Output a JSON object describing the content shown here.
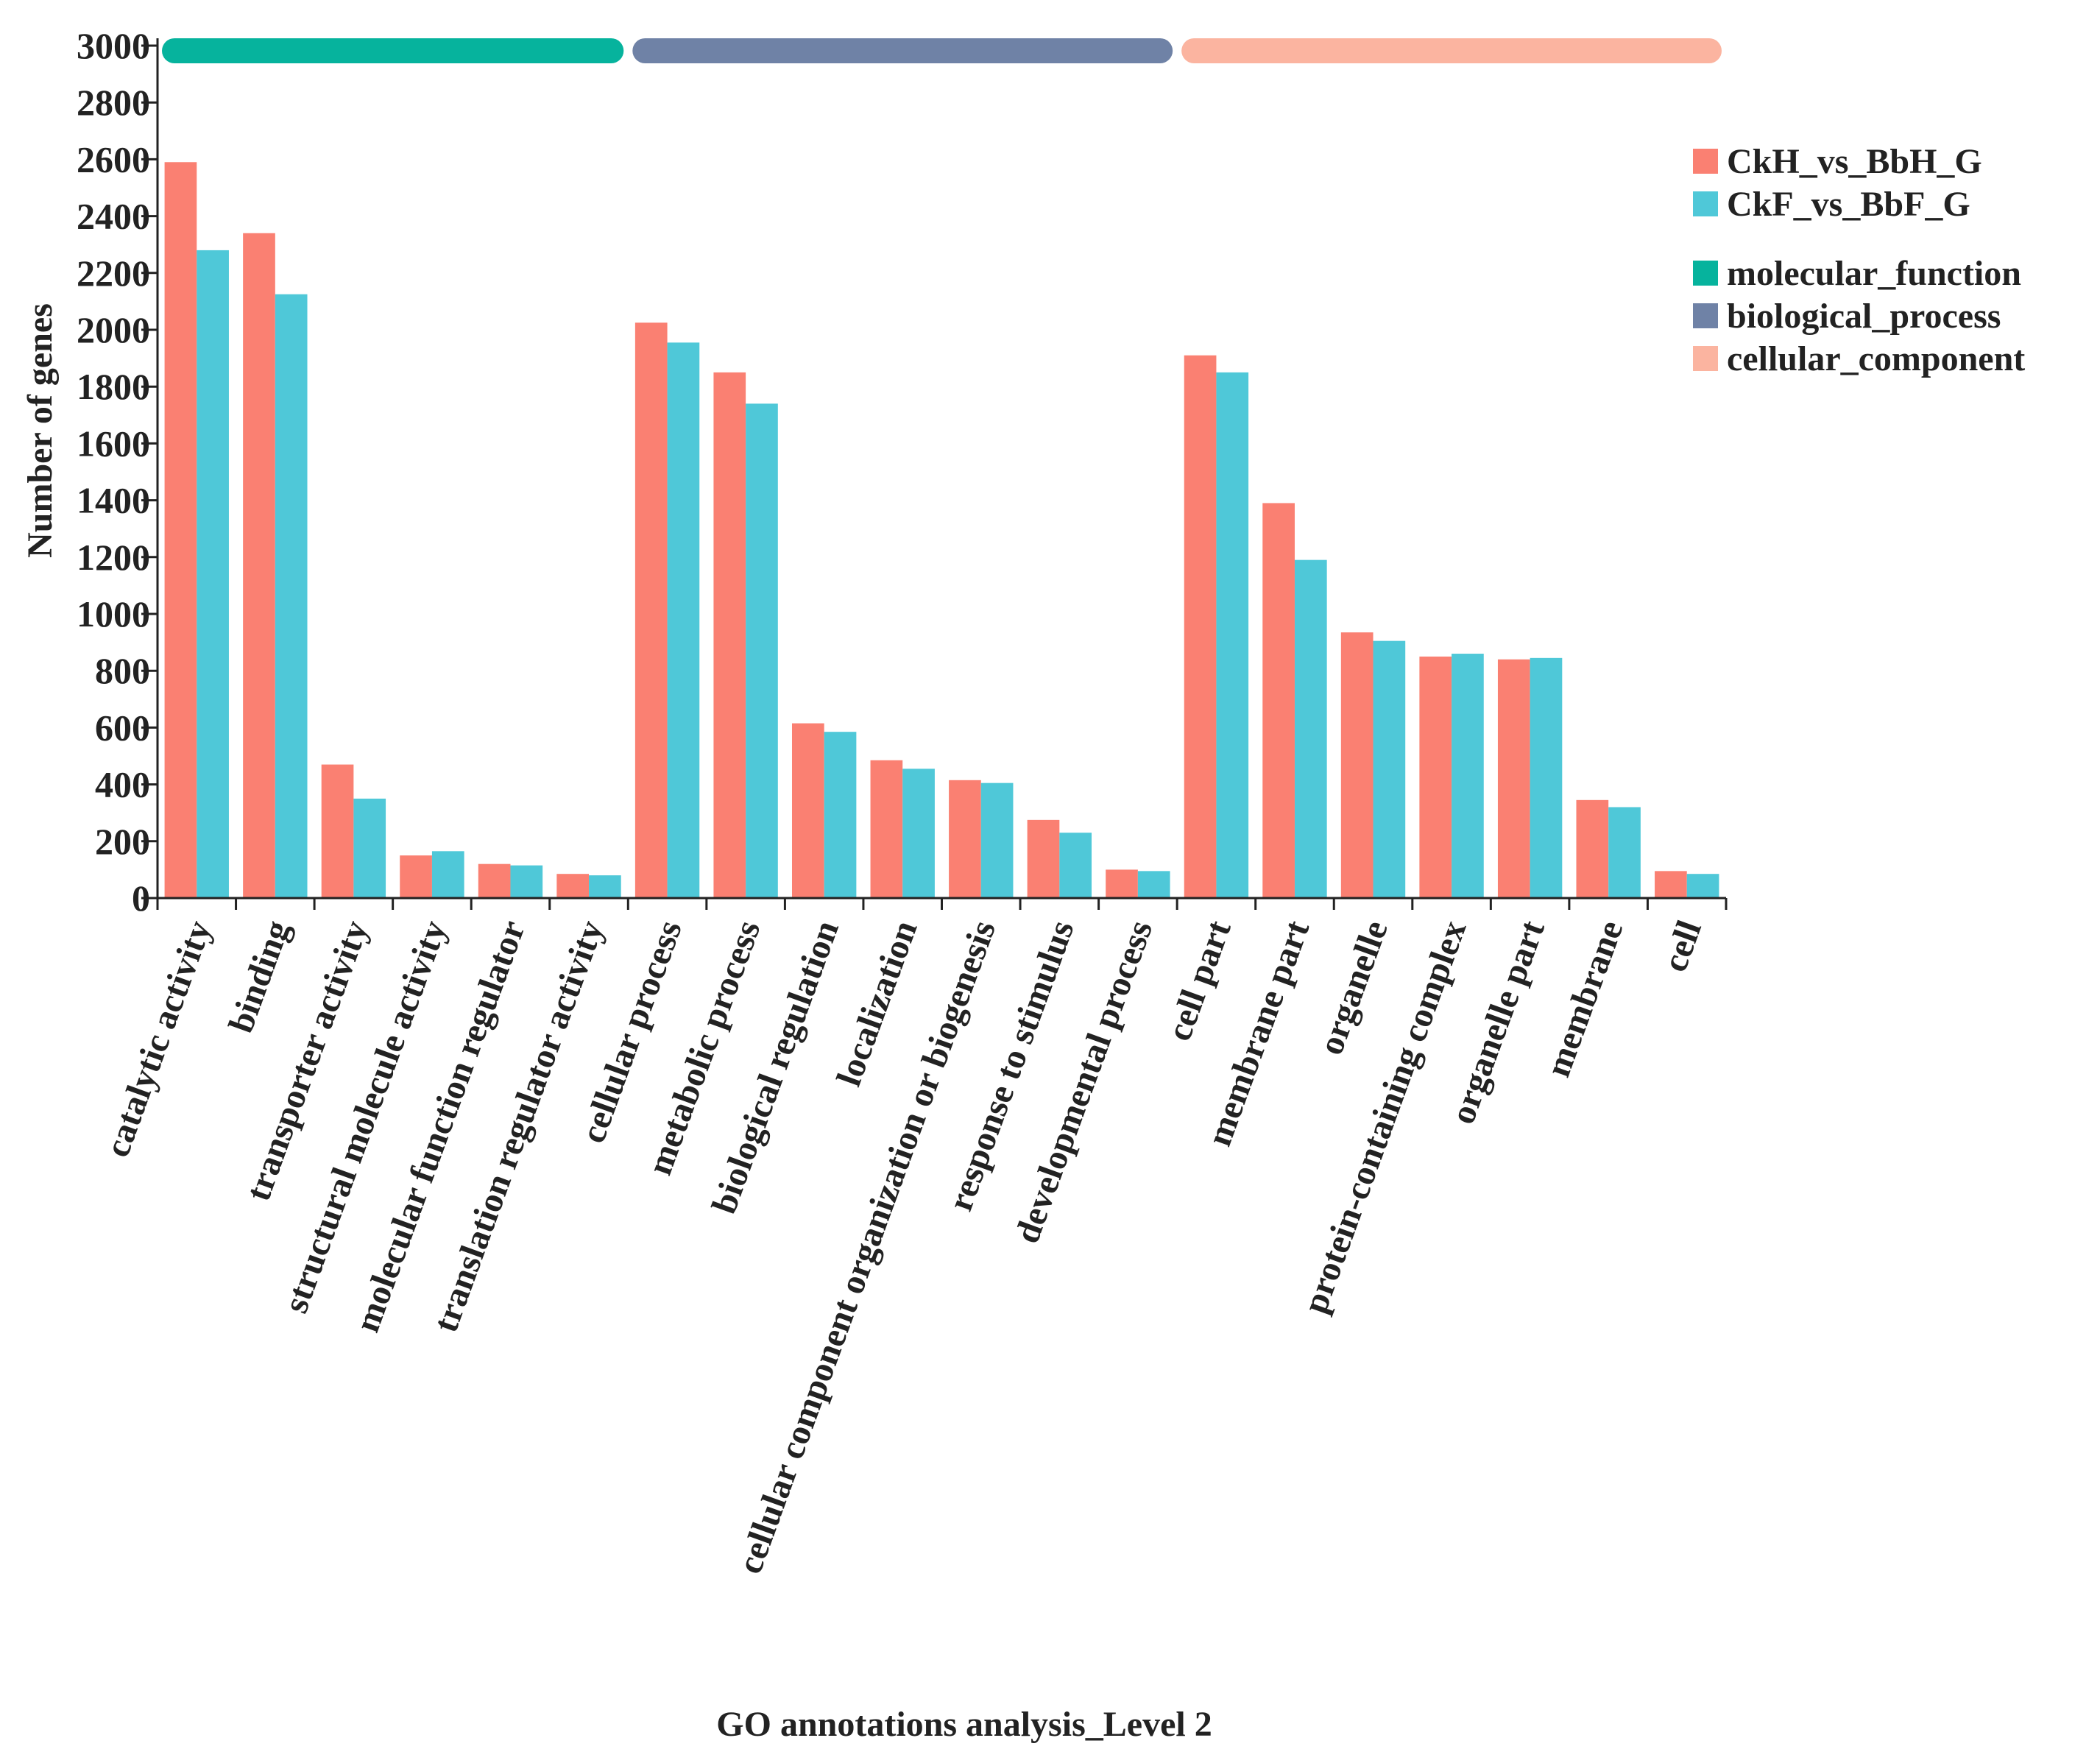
{
  "chart_data": {
    "type": "bar",
    "title": "",
    "xlabel": "GO annotations analysis_Level 2",
    "ylabel": "Number of genes",
    "ylim": [
      0,
      3000
    ],
    "yticks": [
      0,
      200,
      400,
      600,
      800,
      1000,
      1200,
      1400,
      1600,
      1800,
      2000,
      2200,
      2400,
      2600,
      2800,
      3000
    ],
    "ytick_labels": [
      "0",
      "200",
      "400",
      "600",
      "800",
      "1000",
      "1200",
      "1400",
      "1600",
      "1800",
      "2000",
      "2200",
      "2400",
      "2600",
      "2800",
      "3000"
    ],
    "categories": [
      "catalytic activity",
      "binding",
      "transporter activity",
      "structural molecule activity",
      "molecular function regulator",
      "translation regulator activity",
      "cellular process",
      "metabolic process",
      "biological regulation",
      "localization",
      "cellular component organization or biogenesis",
      "response to stimulus",
      "developmental process",
      "cell part",
      "membrane part",
      "organelle",
      "protein-containing complex",
      "organelle part",
      "membrane",
      "cell"
    ],
    "series": [
      {
        "name": "CkH_vs_BbH_G",
        "color": "#fa8072",
        "values": [
          2590,
          2340,
          470,
          150,
          120,
          85,
          2025,
          1850,
          615,
          485,
          415,
          275,
          100,
          1910,
          1390,
          935,
          850,
          840,
          345,
          95
        ]
      },
      {
        "name": "CkF_vs_BbF_G",
        "color": "#4fc8d8",
        "values": [
          2280,
          2125,
          350,
          165,
          115,
          80,
          1955,
          1740,
          585,
          455,
          405,
          230,
          95,
          1850,
          1190,
          905,
          860,
          845,
          320,
          85
        ]
      }
    ],
    "groups": [
      {
        "name": "molecular_function",
        "color": "#06b39d",
        "start": 0,
        "end": 5
      },
      {
        "name": "biological_process",
        "color": "#6f82a6",
        "start": 6,
        "end": 12
      },
      {
        "name": "cellular_component",
        "color": "#fbb4a0",
        "start": 13,
        "end": 19
      }
    ],
    "legend_position": "right"
  }
}
